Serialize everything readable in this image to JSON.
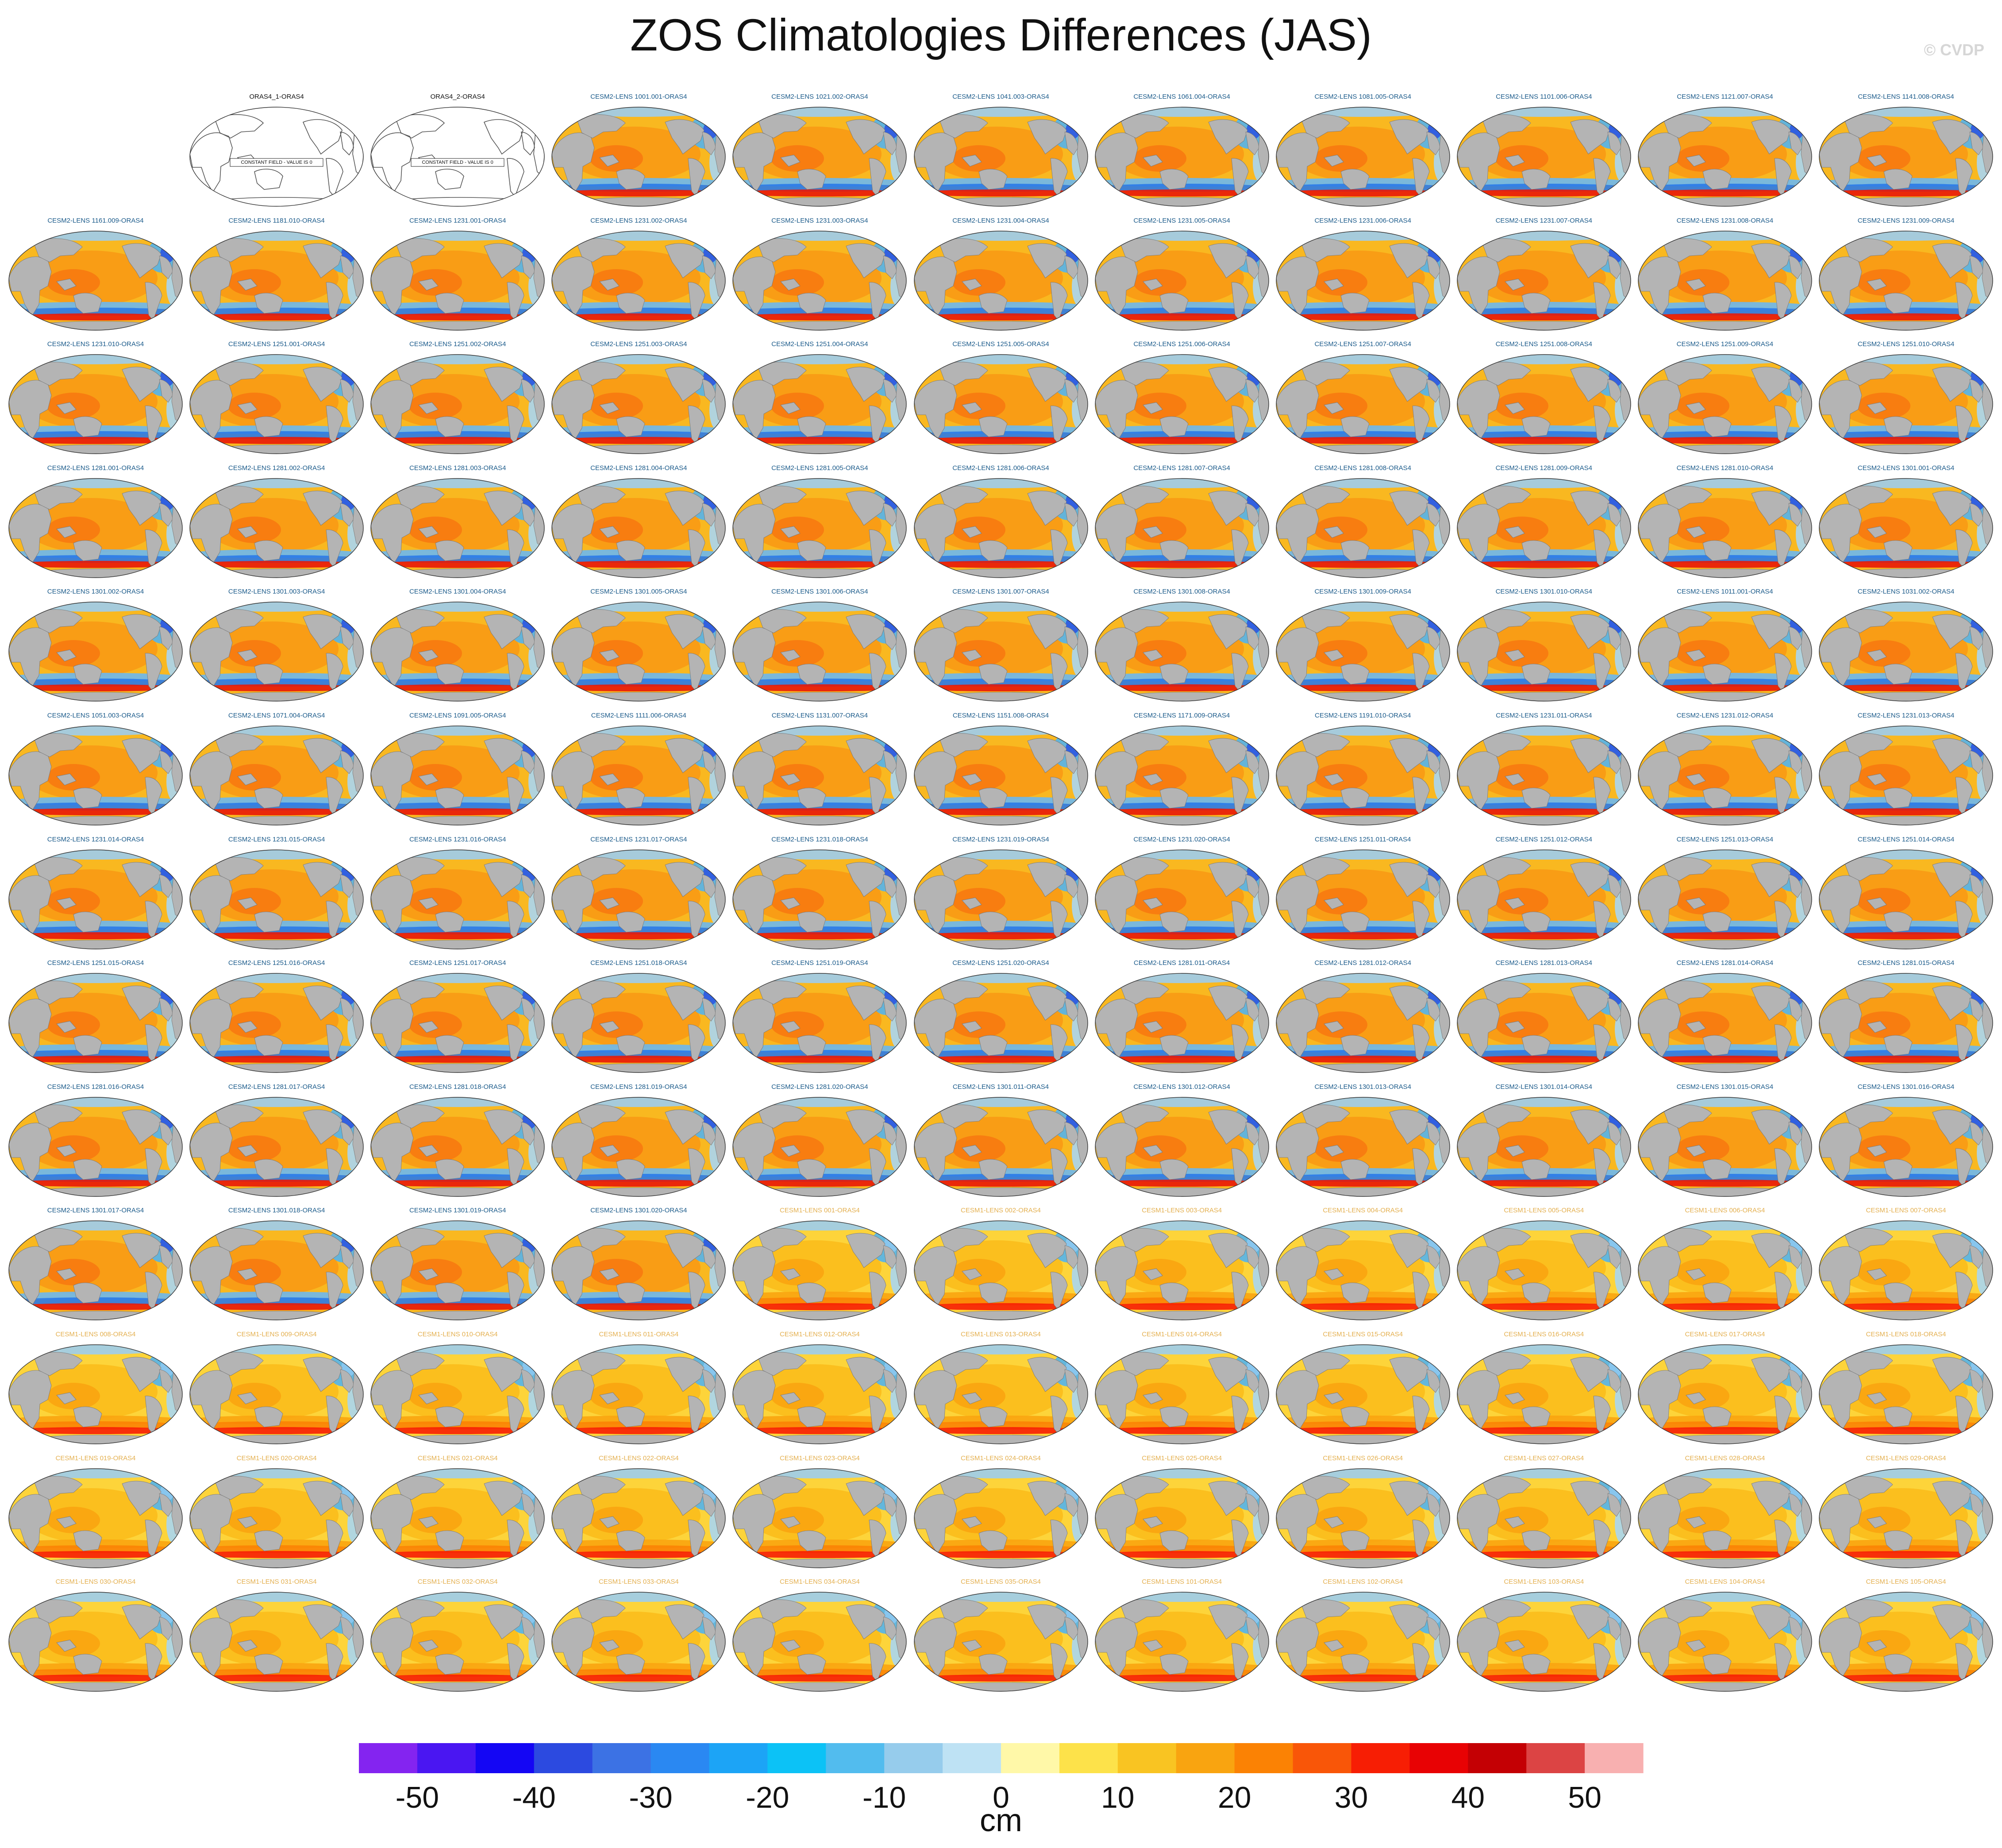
{
  "title": "ZOS Climatologies Differences (JAS)",
  "credit": "© CVDP",
  "colorbar": {
    "label": "cm",
    "tick_labels": [
      "-50",
      "-40",
      "-30",
      "-20",
      "-10",
      "0",
      "10",
      "20",
      "30",
      "40",
      "50"
    ],
    "colors": [
      "#8424f0",
      "#4a16f2",
      "#1406f4",
      "#2c4ae0",
      "#3c72e4",
      "#2a88f2",
      "#1ca4f6",
      "#0cc2f6",
      "#52bcee",
      "#96ccec",
      "#bee2f4",
      "#fff8a8",
      "#fde24a",
      "#f9c422",
      "#f9a410",
      "#fb8204",
      "#f95608",
      "#f71e04",
      "#e80204",
      "#c40004",
      "#dc4444",
      "#f8b0b0"
    ]
  },
  "panel_colors": {
    "ocean_warm": "#f9b820",
    "ocean_cesm1": "#fdd43a",
    "land": "#b4b4b4",
    "title_cesm2": "#1a5a8a",
    "title_cesm1": "#e4b050",
    "title_oras": "#111111"
  },
  "panels": [
    {
      "title": "",
      "type": "blank"
    },
    {
      "title": "ORAS4_1-ORAS4",
      "type": "constant",
      "note": "CONSTANT FIELD - VALUE IS 0"
    },
    {
      "title": "ORAS4_2-ORAS4",
      "type": "constant",
      "note": "CONSTANT FIELD - VALUE IS 0"
    },
    {
      "title": "CESM2-LENS 1001.001-ORAS4",
      "type": "cesm2"
    },
    {
      "title": "CESM2-LENS 1021.002-ORAS4",
      "type": "cesm2"
    },
    {
      "title": "CESM2-LENS 1041.003-ORAS4",
      "type": "cesm2"
    },
    {
      "title": "CESM2-LENS 1061.004-ORAS4",
      "type": "cesm2"
    },
    {
      "title": "CESM2-LENS 1081.005-ORAS4",
      "type": "cesm2"
    },
    {
      "title": "CESM2-LENS 1101.006-ORAS4",
      "type": "cesm2"
    },
    {
      "title": "CESM2-LENS 1121.007-ORAS4",
      "type": "cesm2"
    },
    {
      "title": "CESM2-LENS 1141.008-ORAS4",
      "type": "cesm2"
    },
    {
      "title": "CESM2-LENS 1161.009-ORAS4",
      "type": "cesm2"
    },
    {
      "title": "CESM2-LENS 1181.010-ORAS4",
      "type": "cesm2"
    },
    {
      "title": "CESM2-LENS 1231.001-ORAS4",
      "type": "cesm2"
    },
    {
      "title": "CESM2-LENS 1231.002-ORAS4",
      "type": "cesm2"
    },
    {
      "title": "CESM2-LENS 1231.003-ORAS4",
      "type": "cesm2"
    },
    {
      "title": "CESM2-LENS 1231.004-ORAS4",
      "type": "cesm2"
    },
    {
      "title": "CESM2-LENS 1231.005-ORAS4",
      "type": "cesm2"
    },
    {
      "title": "CESM2-LENS 1231.006-ORAS4",
      "type": "cesm2"
    },
    {
      "title": "CESM2-LENS 1231.007-ORAS4",
      "type": "cesm2"
    },
    {
      "title": "CESM2-LENS 1231.008-ORAS4",
      "type": "cesm2"
    },
    {
      "title": "CESM2-LENS 1231.009-ORAS4",
      "type": "cesm2"
    },
    {
      "title": "CESM2-LENS 1231.010-ORAS4",
      "type": "cesm2"
    },
    {
      "title": "CESM2-LENS 1251.001-ORAS4",
      "type": "cesm2"
    },
    {
      "title": "CESM2-LENS 1251.002-ORAS4",
      "type": "cesm2"
    },
    {
      "title": "CESM2-LENS 1251.003-ORAS4",
      "type": "cesm2"
    },
    {
      "title": "CESM2-LENS 1251.004-ORAS4",
      "type": "cesm2"
    },
    {
      "title": "CESM2-LENS 1251.005-ORAS4",
      "type": "cesm2"
    },
    {
      "title": "CESM2-LENS 1251.006-ORAS4",
      "type": "cesm2"
    },
    {
      "title": "CESM2-LENS 1251.007-ORAS4",
      "type": "cesm2"
    },
    {
      "title": "CESM2-LENS 1251.008-ORAS4",
      "type": "cesm2"
    },
    {
      "title": "CESM2-LENS 1251.009-ORAS4",
      "type": "cesm2"
    },
    {
      "title": "CESM2-LENS 1251.010-ORAS4",
      "type": "cesm2"
    },
    {
      "title": "CESM2-LENS 1281.001-ORAS4",
      "type": "cesm2"
    },
    {
      "title": "CESM2-LENS 1281.002-ORAS4",
      "type": "cesm2"
    },
    {
      "title": "CESM2-LENS 1281.003-ORAS4",
      "type": "cesm2"
    },
    {
      "title": "CESM2-LENS 1281.004-ORAS4",
      "type": "cesm2"
    },
    {
      "title": "CESM2-LENS 1281.005-ORAS4",
      "type": "cesm2"
    },
    {
      "title": "CESM2-LENS 1281.006-ORAS4",
      "type": "cesm2"
    },
    {
      "title": "CESM2-LENS 1281.007-ORAS4",
      "type": "cesm2"
    },
    {
      "title": "CESM2-LENS 1281.008-ORAS4",
      "type": "cesm2"
    },
    {
      "title": "CESM2-LENS 1281.009-ORAS4",
      "type": "cesm2"
    },
    {
      "title": "CESM2-LENS 1281.010-ORAS4",
      "type": "cesm2"
    },
    {
      "title": "CESM2-LENS 1301.001-ORAS4",
      "type": "cesm2"
    },
    {
      "title": "CESM2-LENS 1301.002-ORAS4",
      "type": "cesm2"
    },
    {
      "title": "CESM2-LENS 1301.003-ORAS4",
      "type": "cesm2"
    },
    {
      "title": "CESM2-LENS 1301.004-ORAS4",
      "type": "cesm2"
    },
    {
      "title": "CESM2-LENS 1301.005-ORAS4",
      "type": "cesm2"
    },
    {
      "title": "CESM2-LENS 1301.006-ORAS4",
      "type": "cesm2"
    },
    {
      "title": "CESM2-LENS 1301.007-ORAS4",
      "type": "cesm2"
    },
    {
      "title": "CESM2-LENS 1301.008-ORAS4",
      "type": "cesm2"
    },
    {
      "title": "CESM2-LENS 1301.009-ORAS4",
      "type": "cesm2"
    },
    {
      "title": "CESM2-LENS 1301.010-ORAS4",
      "type": "cesm2"
    },
    {
      "title": "CESM2-LENS 1011.001-ORAS4",
      "type": "cesm2"
    },
    {
      "title": "CESM2-LENS 1031.002-ORAS4",
      "type": "cesm2"
    },
    {
      "title": "CESM2-LENS 1051.003-ORAS4",
      "type": "cesm2"
    },
    {
      "title": "CESM2-LENS 1071.004-ORAS4",
      "type": "cesm2"
    },
    {
      "title": "CESM2-LENS 1091.005-ORAS4",
      "type": "cesm2"
    },
    {
      "title": "CESM2-LENS 1111.006-ORAS4",
      "type": "cesm2"
    },
    {
      "title": "CESM2-LENS 1131.007-ORAS4",
      "type": "cesm2"
    },
    {
      "title": "CESM2-LENS 1151.008-ORAS4",
      "type": "cesm2"
    },
    {
      "title": "CESM2-LENS 1171.009-ORAS4",
      "type": "cesm2"
    },
    {
      "title": "CESM2-LENS 1191.010-ORAS4",
      "type": "cesm2"
    },
    {
      "title": "CESM2-LENS 1231.011-ORAS4",
      "type": "cesm2"
    },
    {
      "title": "CESM2-LENS 1231.012-ORAS4",
      "type": "cesm2"
    },
    {
      "title": "CESM2-LENS 1231.013-ORAS4",
      "type": "cesm2"
    },
    {
      "title": "CESM2-LENS 1231.014-ORAS4",
      "type": "cesm2"
    },
    {
      "title": "CESM2-LENS 1231.015-ORAS4",
      "type": "cesm2"
    },
    {
      "title": "CESM2-LENS 1231.016-ORAS4",
      "type": "cesm2"
    },
    {
      "title": "CESM2-LENS 1231.017-ORAS4",
      "type": "cesm2"
    },
    {
      "title": "CESM2-LENS 1231.018-ORAS4",
      "type": "cesm2"
    },
    {
      "title": "CESM2-LENS 1231.019-ORAS4",
      "type": "cesm2"
    },
    {
      "title": "CESM2-LENS 1231.020-ORAS4",
      "type": "cesm2"
    },
    {
      "title": "CESM2-LENS 1251.011-ORAS4",
      "type": "cesm2"
    },
    {
      "title": "CESM2-LENS 1251.012-ORAS4",
      "type": "cesm2"
    },
    {
      "title": "CESM2-LENS 1251.013-ORAS4",
      "type": "cesm2"
    },
    {
      "title": "CESM2-LENS 1251.014-ORAS4",
      "type": "cesm2"
    },
    {
      "title": "CESM2-LENS 1251.015-ORAS4",
      "type": "cesm2"
    },
    {
      "title": "CESM2-LENS 1251.016-ORAS4",
      "type": "cesm2"
    },
    {
      "title": "CESM2-LENS 1251.017-ORAS4",
      "type": "cesm2"
    },
    {
      "title": "CESM2-LENS 1251.018-ORAS4",
      "type": "cesm2"
    },
    {
      "title": "CESM2-LENS 1251.019-ORAS4",
      "type": "cesm2"
    },
    {
      "title": "CESM2-LENS 1251.020-ORAS4",
      "type": "cesm2"
    },
    {
      "title": "CESM2-LENS 1281.011-ORAS4",
      "type": "cesm2"
    },
    {
      "title": "CESM2-LENS 1281.012-ORAS4",
      "type": "cesm2"
    },
    {
      "title": "CESM2-LENS 1281.013-ORAS4",
      "type": "cesm2"
    },
    {
      "title": "CESM2-LENS 1281.014-ORAS4",
      "type": "cesm2"
    },
    {
      "title": "CESM2-LENS 1281.015-ORAS4",
      "type": "cesm2"
    },
    {
      "title": "CESM2-LENS 1281.016-ORAS4",
      "type": "cesm2"
    },
    {
      "title": "CESM2-LENS 1281.017-ORAS4",
      "type": "cesm2"
    },
    {
      "title": "CESM2-LENS 1281.018-ORAS4",
      "type": "cesm2"
    },
    {
      "title": "CESM2-LENS 1281.019-ORAS4",
      "type": "cesm2"
    },
    {
      "title": "CESM2-LENS 1281.020-ORAS4",
      "type": "cesm2"
    },
    {
      "title": "CESM2-LENS 1301.011-ORAS4",
      "type": "cesm2"
    },
    {
      "title": "CESM2-LENS 1301.012-ORAS4",
      "type": "cesm2"
    },
    {
      "title": "CESM2-LENS 1301.013-ORAS4",
      "type": "cesm2"
    },
    {
      "title": "CESM2-LENS 1301.014-ORAS4",
      "type": "cesm2"
    },
    {
      "title": "CESM2-LENS 1301.015-ORAS4",
      "type": "cesm2"
    },
    {
      "title": "CESM2-LENS 1301.016-ORAS4",
      "type": "cesm2"
    },
    {
      "title": "CESM2-LENS 1301.017-ORAS4",
      "type": "cesm2"
    },
    {
      "title": "CESM2-LENS 1301.018-ORAS4",
      "type": "cesm2"
    },
    {
      "title": "CESM2-LENS 1301.019-ORAS4",
      "type": "cesm2"
    },
    {
      "title": "CESM2-LENS 1301.020-ORAS4",
      "type": "cesm2"
    },
    {
      "title": "CESM1-LENS 001-ORAS4",
      "type": "cesm1"
    },
    {
      "title": "CESM1-LENS 002-ORAS4",
      "type": "cesm1"
    },
    {
      "title": "CESM1-LENS 003-ORAS4",
      "type": "cesm1"
    },
    {
      "title": "CESM1-LENS 004-ORAS4",
      "type": "cesm1"
    },
    {
      "title": "CESM1-LENS 005-ORAS4",
      "type": "cesm1"
    },
    {
      "title": "CESM1-LENS 006-ORAS4",
      "type": "cesm1"
    },
    {
      "title": "CESM1-LENS 007-ORAS4",
      "type": "cesm1"
    },
    {
      "title": "CESM1-LENS 008-ORAS4",
      "type": "cesm1"
    },
    {
      "title": "CESM1-LENS 009-ORAS4",
      "type": "cesm1"
    },
    {
      "title": "CESM1-LENS 010-ORAS4",
      "type": "cesm1"
    },
    {
      "title": "CESM1-LENS 011-ORAS4",
      "type": "cesm1"
    },
    {
      "title": "CESM1-LENS 012-ORAS4",
      "type": "cesm1"
    },
    {
      "title": "CESM1-LENS 013-ORAS4",
      "type": "cesm1"
    },
    {
      "title": "CESM1-LENS 014-ORAS4",
      "type": "cesm1"
    },
    {
      "title": "CESM1-LENS 015-ORAS4",
      "type": "cesm1"
    },
    {
      "title": "CESM1-LENS 016-ORAS4",
      "type": "cesm1"
    },
    {
      "title": "CESM1-LENS 017-ORAS4",
      "type": "cesm1"
    },
    {
      "title": "CESM1-LENS 018-ORAS4",
      "type": "cesm1"
    },
    {
      "title": "CESM1-LENS 019-ORAS4",
      "type": "cesm1"
    },
    {
      "title": "CESM1-LENS 020-ORAS4",
      "type": "cesm1"
    },
    {
      "title": "CESM1-LENS 021-ORAS4",
      "type": "cesm1"
    },
    {
      "title": "CESM1-LENS 022-ORAS4",
      "type": "cesm1"
    },
    {
      "title": "CESM1-LENS 023-ORAS4",
      "type": "cesm1"
    },
    {
      "title": "CESM1-LENS 024-ORAS4",
      "type": "cesm1"
    },
    {
      "title": "CESM1-LENS 025-ORAS4",
      "type": "cesm1"
    },
    {
      "title": "CESM1-LENS 026-ORAS4",
      "type": "cesm1"
    },
    {
      "title": "CESM1-LENS 027-ORAS4",
      "type": "cesm1"
    },
    {
      "title": "CESM1-LENS 028-ORAS4",
      "type": "cesm1"
    },
    {
      "title": "CESM1-LENS 029-ORAS4",
      "type": "cesm1"
    },
    {
      "title": "CESM1-LENS 030-ORAS4",
      "type": "cesm1"
    },
    {
      "title": "CESM1-LENS 031-ORAS4",
      "type": "cesm1"
    },
    {
      "title": "CESM1-LENS 032-ORAS4",
      "type": "cesm1"
    },
    {
      "title": "CESM1-LENS 033-ORAS4",
      "type": "cesm1"
    },
    {
      "title": "CESM1-LENS 034-ORAS4",
      "type": "cesm1"
    },
    {
      "title": "CESM1-LENS 035-ORAS4",
      "type": "cesm1"
    },
    {
      "title": "CESM1-LENS 101-ORAS4",
      "type": "cesm1"
    },
    {
      "title": "CESM1-LENS 102-ORAS4",
      "type": "cesm1"
    },
    {
      "title": "CESM1-LENS 103-ORAS4",
      "type": "cesm1"
    },
    {
      "title": "CESM1-LENS 104-ORAS4",
      "type": "cesm1"
    },
    {
      "title": "CESM1-LENS 105-ORAS4",
      "type": "cesm1"
    }
  ]
}
